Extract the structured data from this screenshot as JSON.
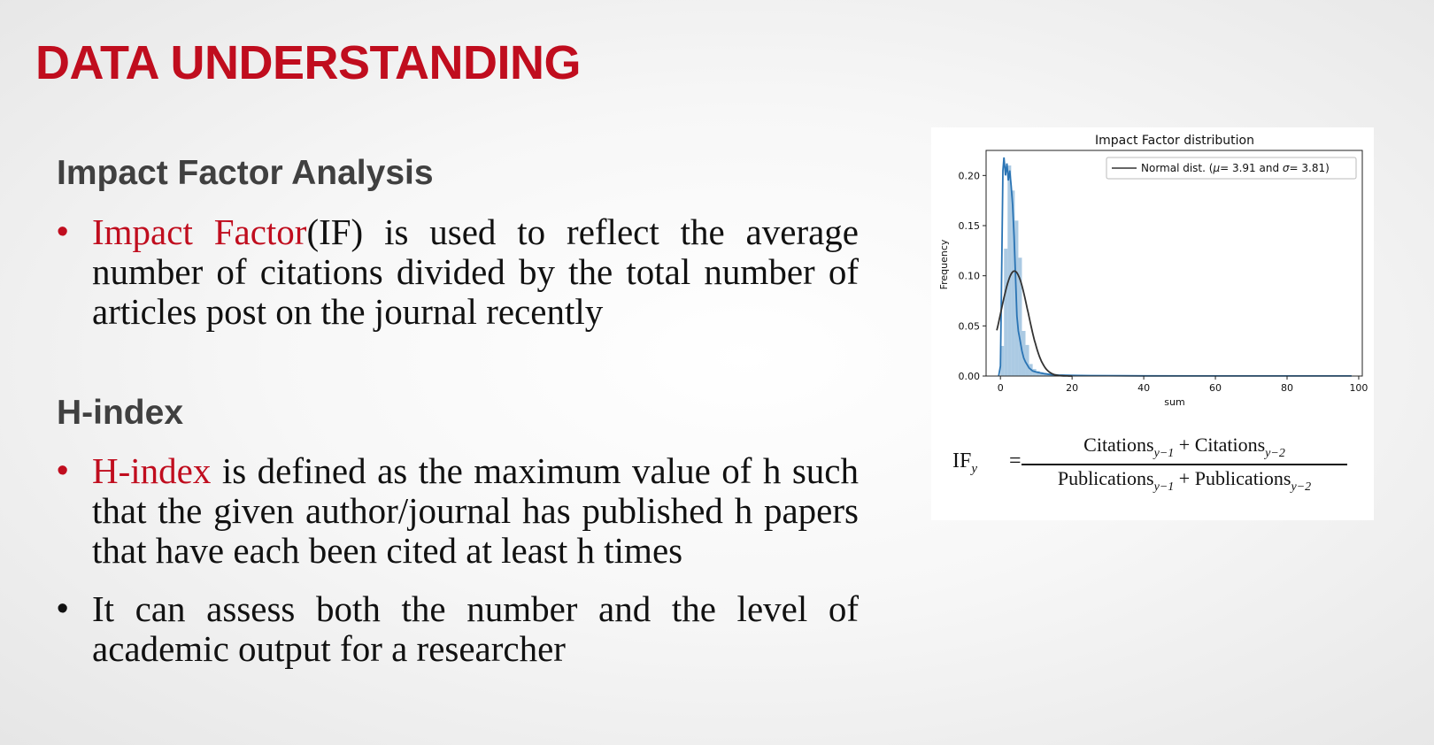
{
  "slide": {
    "title": "DATA UNDERSTANDING",
    "sections": {
      "impact": {
        "heading": "Impact Factor Analysis",
        "bullet1_highlight": "Impact Factor",
        "bullet1_rest": "(IF) is used to reflect the average number of citations divided by the total number of articles post on the journal recently"
      },
      "hindex": {
        "heading": "H-index",
        "bullet1_highlight": "H-index",
        "bullet1_rest": " is defined as the maximum value of h such that the given author/journal has published h papers that have each been cited at least h times",
        "bullet2": "It can assess both the number and the level of academic output for a researcher"
      }
    },
    "bullet_glyph": "•"
  },
  "chart_data": {
    "type": "histogram",
    "title": "Impact Factor distribution",
    "xlabel": "sum",
    "ylabel": "Frequency",
    "xlim": [
      -4,
      101
    ],
    "ylim": [
      0,
      0.225
    ],
    "x_ticks": [
      0,
      20,
      40,
      60,
      80,
      100
    ],
    "y_ticks": [
      0.0,
      0.05,
      0.1,
      0.15,
      0.2
    ],
    "y_tick_labels": [
      "0.00",
      "0.05",
      "0.10",
      "0.15",
      "0.20"
    ],
    "legend": {
      "position": "top-right",
      "label_prefix": "Normal dist. (",
      "mu_symbol": "μ",
      "mu_eq": "= 3.91",
      "and": "and",
      "sigma_symbol": "σ",
      "sigma_eq": "= 3.81",
      "label_suffix": ")"
    },
    "histogram": {
      "bin_edges": [
        0,
        1,
        2,
        3,
        4,
        5,
        6,
        7,
        8,
        9,
        10,
        11,
        12,
        13,
        14,
        16,
        18,
        20
      ],
      "density": [
        0.03,
        0.127,
        0.21,
        0.185,
        0.155,
        0.118,
        0.045,
        0.031,
        0.012,
        0.007,
        0.005,
        0.004,
        0.003,
        0.002,
        0.0015,
        0.001,
        0.0005
      ],
      "color": "#8fb8d9"
    },
    "kde": {
      "x": [
        -0.5,
        0,
        0.3,
        0.7,
        1.0,
        1.4,
        1.8,
        2.2,
        2.6,
        3.0,
        3.4,
        3.8,
        4.2,
        4.6,
        5.0,
        5.5,
        6.0,
        6.5,
        7.0,
        8.0,
        9.0,
        10.0,
        12.0,
        14.0,
        16.0,
        20.0,
        25.0,
        40.0,
        60.0,
        80.0,
        98.0
      ],
      "y": [
        0,
        0.01,
        0.09,
        0.205,
        0.218,
        0.2,
        0.212,
        0.195,
        0.205,
        0.19,
        0.17,
        0.14,
        0.1,
        0.06,
        0.045,
        0.035,
        0.025,
        0.018,
        0.014,
        0.008,
        0.005,
        0.004,
        0.0025,
        0.0015,
        0.001,
        0.0006,
        0.0004,
        0.0002,
        0.0001,
        0.0001,
        0.0001
      ],
      "color": "#2a74b4"
    },
    "normal_fit": {
      "mu": 3.91,
      "sigma": 3.81,
      "x_range": [
        -1,
        20
      ],
      "color": "#333333"
    }
  },
  "formula": {
    "lhs": "IF",
    "lhs_sub": "y",
    "eq": "=",
    "citations": "Citations",
    "publications": "Publications",
    "sub1": "y−1",
    "sub2": "y−2",
    "plus": "+"
  }
}
